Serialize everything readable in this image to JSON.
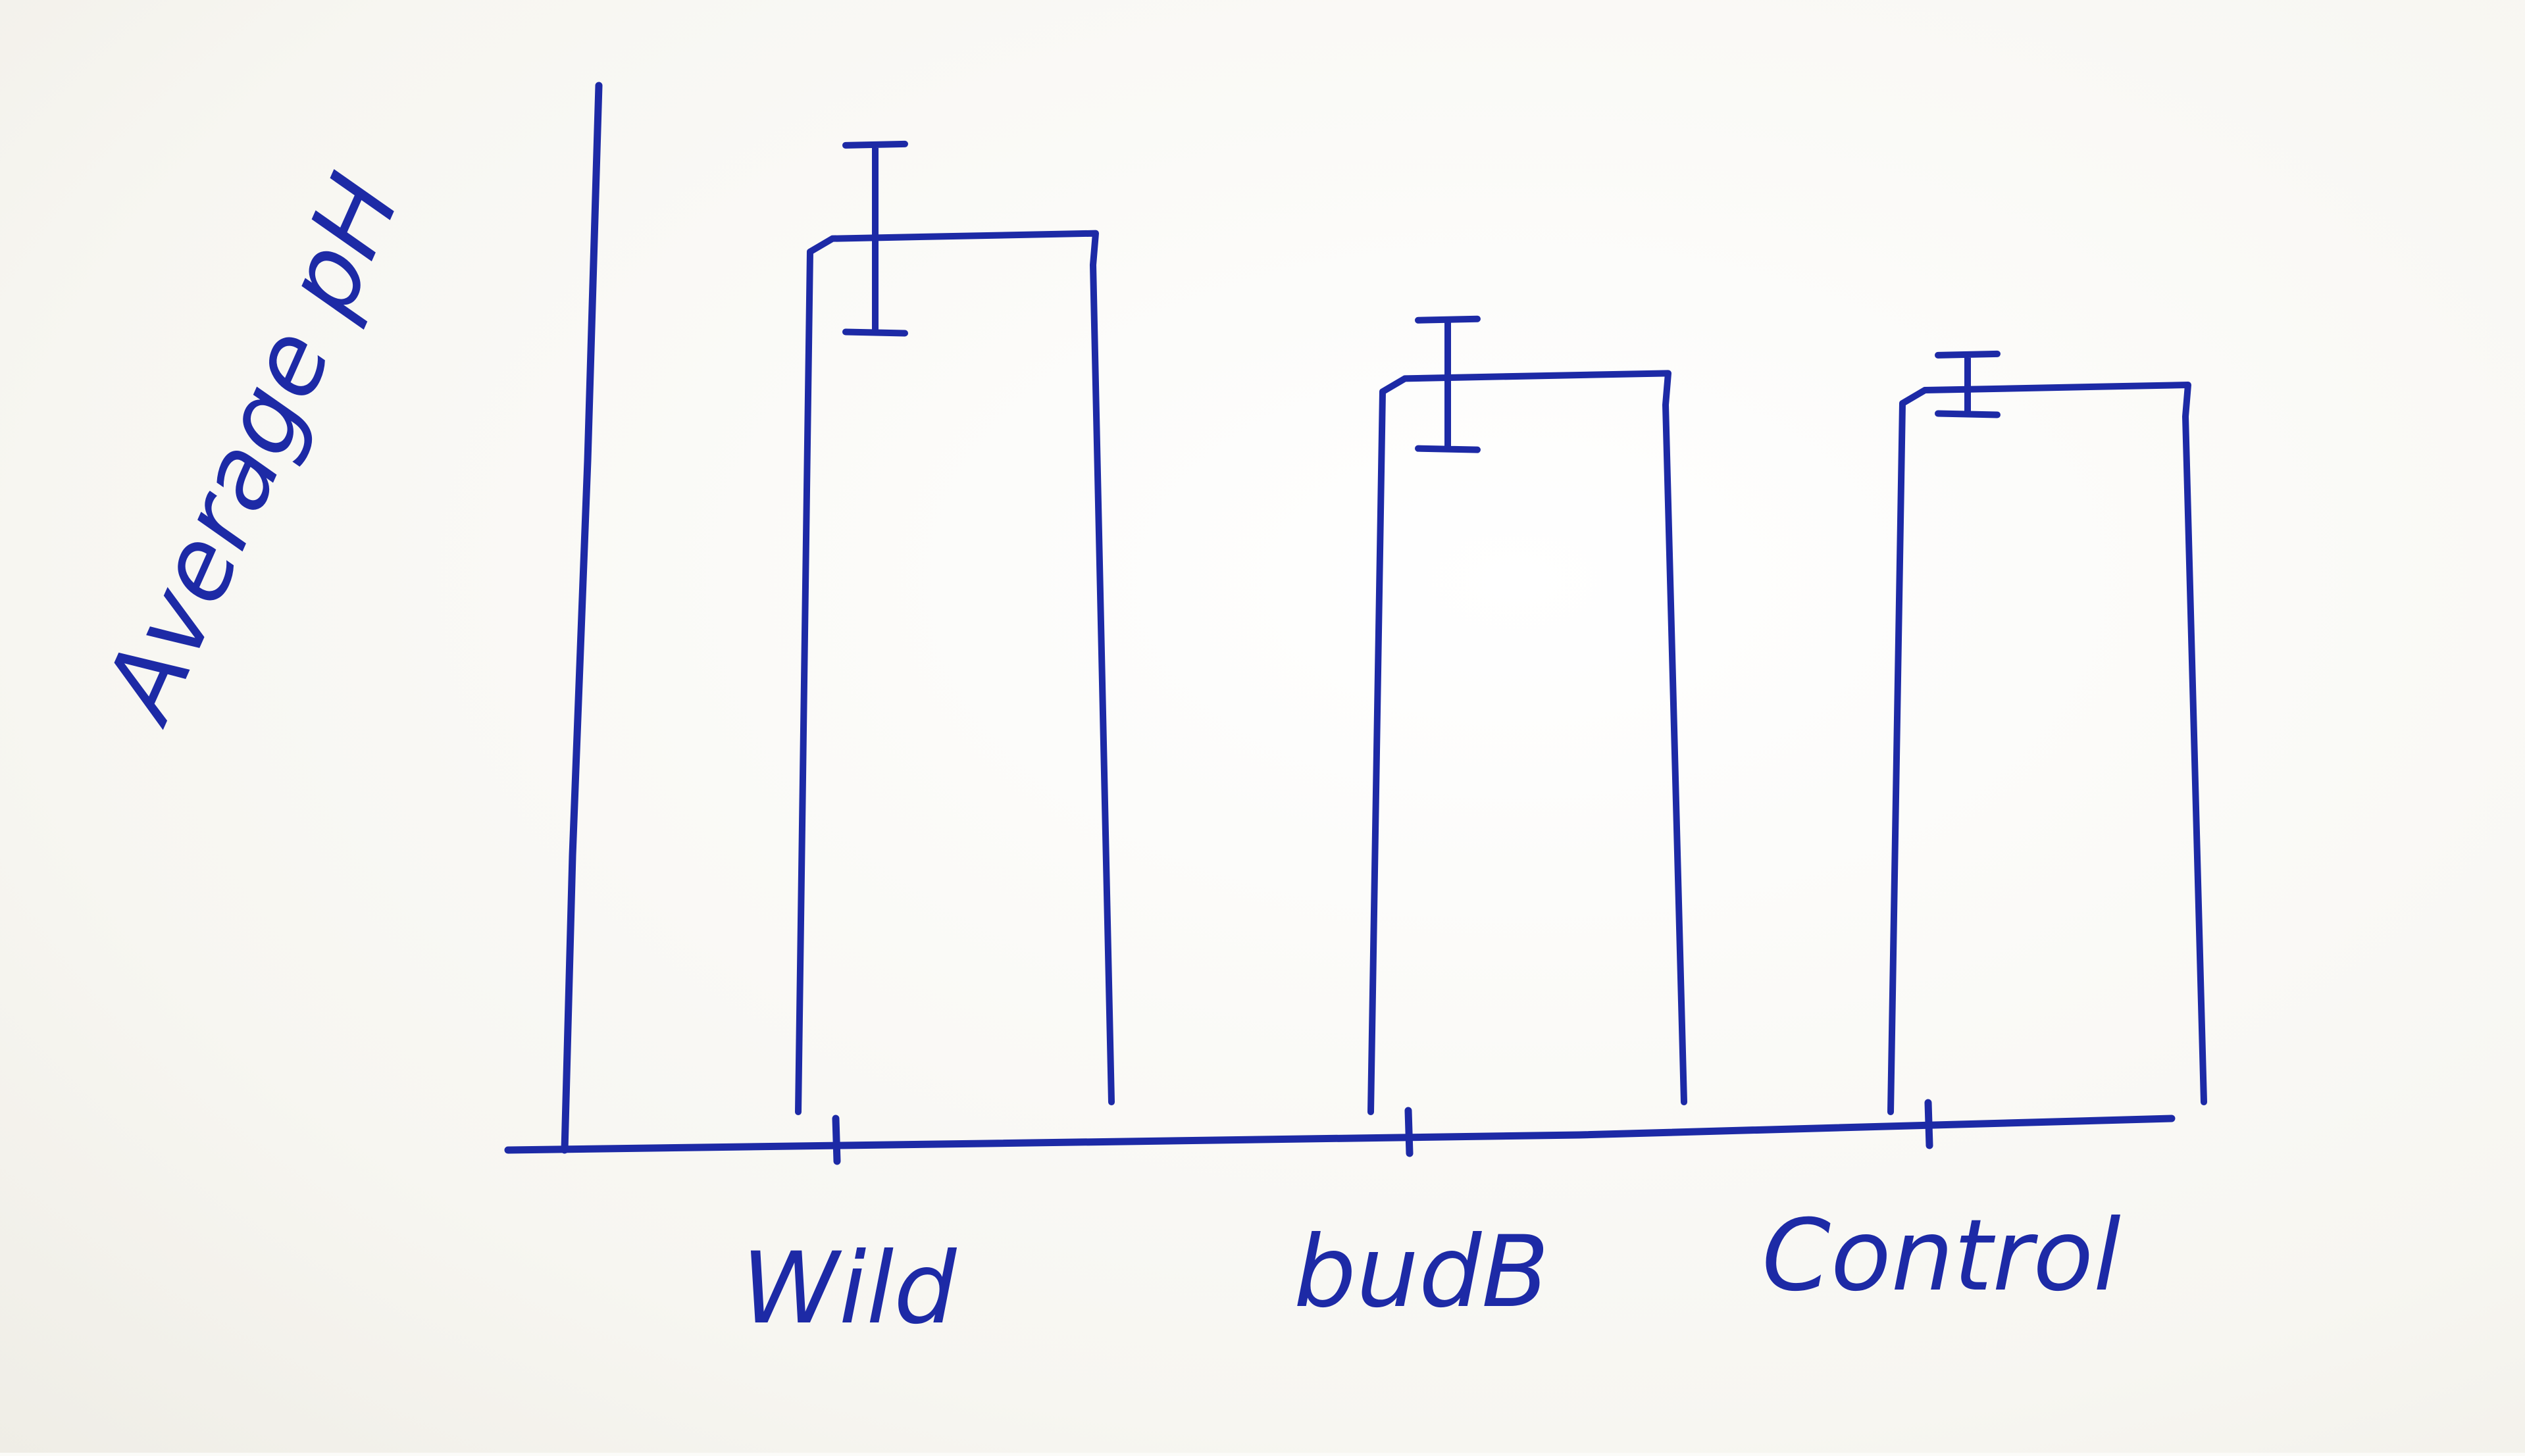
{
  "chart_data": {
    "type": "bar",
    "title": "",
    "xlabel": "",
    "ylabel": "Average pH",
    "categories": [
      "Wild",
      "budB",
      "Control"
    ],
    "values": [
      7.8,
      6.6,
      6.5
    ],
    "error_bars": [
      {
        "low": 7.0,
        "high": 8.6
      },
      {
        "low": 6.0,
        "high": 7.1
      },
      {
        "low": 6.3,
        "high": 6.8
      }
    ],
    "ylim": [
      0,
      9
    ],
    "grid": false,
    "legend": "none",
    "style": "hand-drawn sketch",
    "colors": {
      "ink": "#1d2aa6",
      "paper": "#fbfbf8"
    }
  }
}
